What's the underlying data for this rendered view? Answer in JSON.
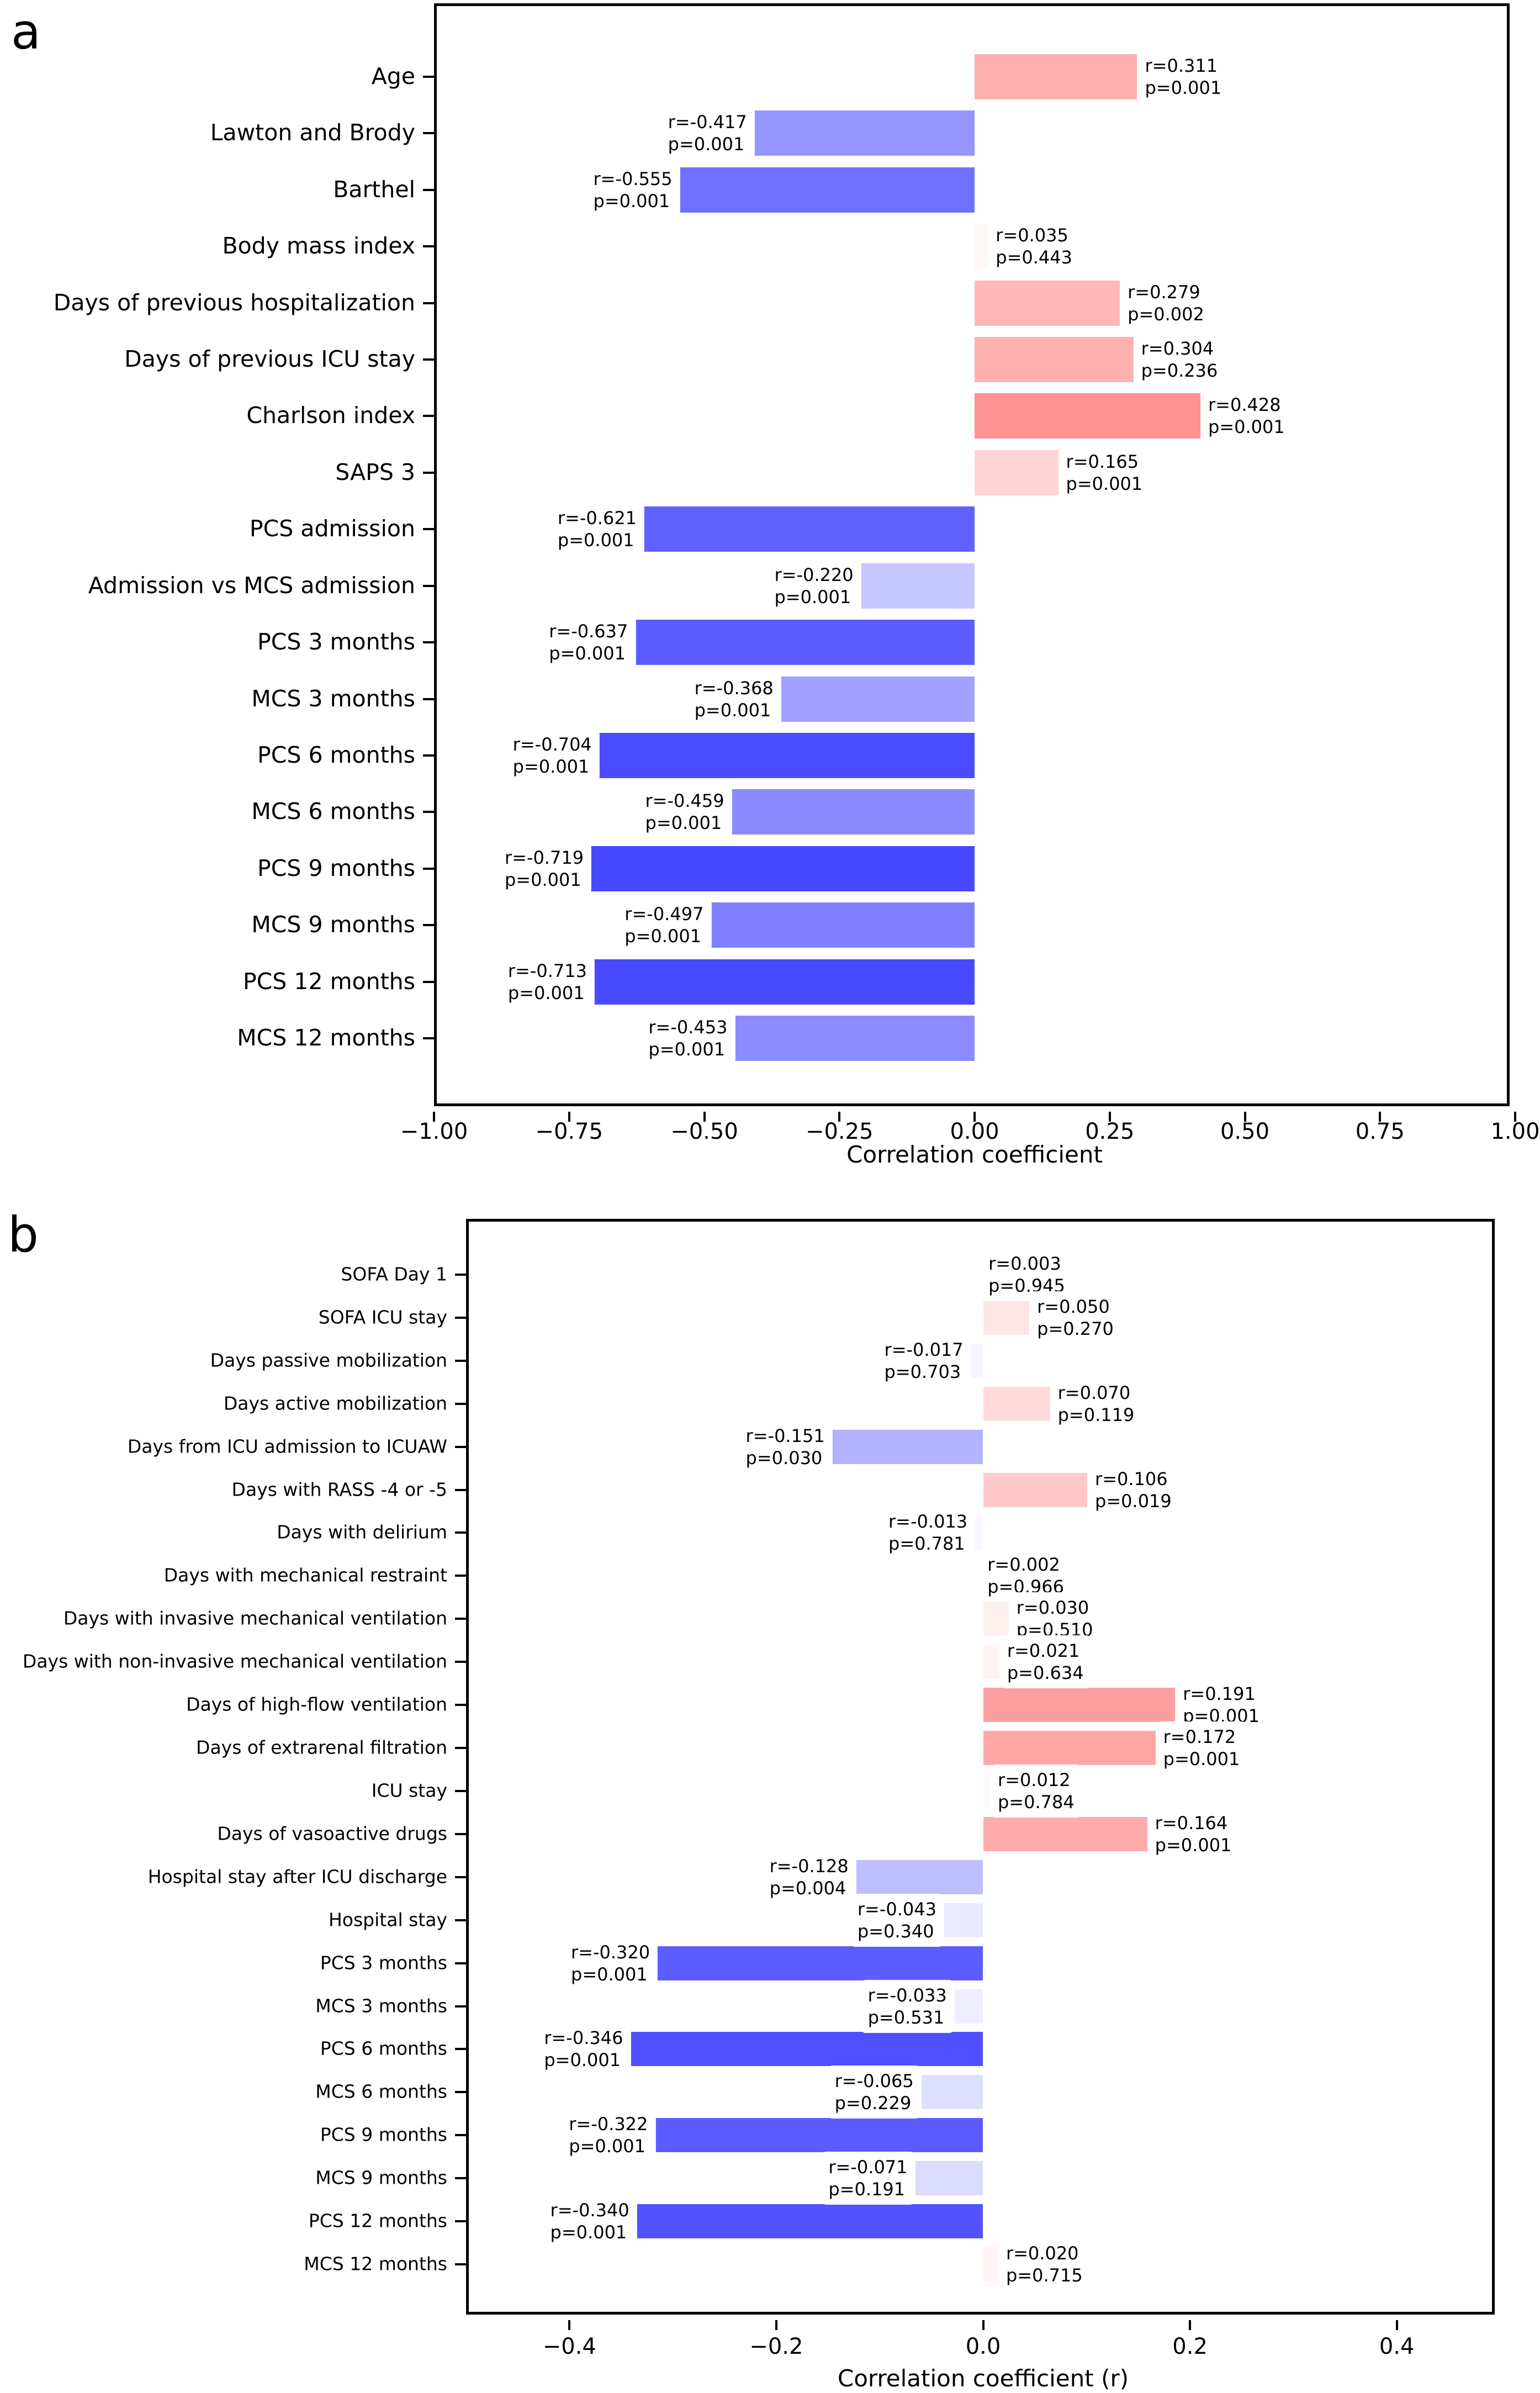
{
  "figure": {
    "background": "#ffffff",
    "positive_color_max": "#ff0000",
    "negative_color_max": "#0000ff",
    "neutral_color": "#ffffff"
  },
  "chart_data": [
    {
      "type": "bar",
      "orientation": "horizontal",
      "panel_label": "a",
      "xlabel": "Correlation coefficient",
      "xlim": [
        -1.0,
        1.0
      ],
      "color_norm": 1.0,
      "colormap": "bwr",
      "grid": false,
      "xticks": [
        {
          "value": -1.0,
          "label": "−1.00"
        },
        {
          "value": -0.75,
          "label": "−0.75"
        },
        {
          "value": -0.5,
          "label": "−0.50"
        },
        {
          "value": -0.25,
          "label": "−0.25"
        },
        {
          "value": 0.0,
          "label": "0.00"
        },
        {
          "value": 0.25,
          "label": "0.25"
        },
        {
          "value": 0.5,
          "label": "0.50"
        },
        {
          "value": 0.75,
          "label": "0.75"
        },
        {
          "value": 1.0,
          "label": "1.00"
        }
      ],
      "categories": [
        "Age",
        "Lawton and Brody",
        "Barthel",
        "Body mass index",
        "Days of previous hospitalization",
        "Days of previous ICU stay",
        "Charlson index",
        "SAPS 3",
        "PCS admission",
        "Admission vs MCS admission",
        "PCS 3 months",
        "MCS 3 months",
        "PCS 6 months",
        "MCS 6 months",
        "PCS 9 months",
        "MCS 9 months",
        "PCS 12 months",
        "MCS 12 months"
      ],
      "values": [
        0.311,
        -0.417,
        -0.555,
        0.035,
        0.279,
        0.304,
        0.428,
        0.165,
        -0.621,
        -0.22,
        -0.637,
        -0.368,
        -0.704,
        -0.459,
        -0.719,
        -0.497,
        -0.713,
        -0.453
      ],
      "p_values": [
        0.001,
        0.001,
        0.001,
        0.443,
        0.002,
        0.236,
        0.001,
        0.001,
        0.001,
        0.001,
        0.001,
        0.001,
        0.001,
        0.001,
        0.001,
        0.001,
        0.001,
        0.001
      ],
      "annotations": [
        {
          "r_text": "r=0.311",
          "p_text": "p=0.001"
        },
        {
          "r_text": "r=-0.417",
          "p_text": "p=0.001"
        },
        {
          "r_text": "r=-0.555",
          "p_text": "p=0.001"
        },
        {
          "r_text": "r=0.035",
          "p_text": "p=0.443"
        },
        {
          "r_text": "r=0.279",
          "p_text": "p=0.002"
        },
        {
          "r_text": "r=0.304",
          "p_text": "p=0.236"
        },
        {
          "r_text": "r=0.428",
          "p_text": "p=0.001"
        },
        {
          "r_text": "r=0.165",
          "p_text": "p=0.001"
        },
        {
          "r_text": "r=-0.621",
          "p_text": "p=0.001"
        },
        {
          "r_text": "r=-0.220",
          "p_text": "p=0.001"
        },
        {
          "r_text": "r=-0.637",
          "p_text": "p=0.001"
        },
        {
          "r_text": "r=-0.368",
          "p_text": "p=0.001"
        },
        {
          "r_text": "r=-0.704",
          "p_text": "p=0.001"
        },
        {
          "r_text": "r=-0.459",
          "p_text": "p=0.001"
        },
        {
          "r_text": "r=-0.719",
          "p_text": "p=0.001"
        },
        {
          "r_text": "r=-0.497",
          "p_text": "p=0.001"
        },
        {
          "r_text": "r=-0.713",
          "p_text": "p=0.001"
        },
        {
          "r_text": "r=-0.453",
          "p_text": "p=0.001"
        }
      ]
    },
    {
      "type": "bar",
      "orientation": "horizontal",
      "panel_label": "b",
      "xlabel": "Correlation coefficient (r)",
      "xlim": [
        -0.5,
        0.5
      ],
      "color_norm": 0.5,
      "colormap": "bwr",
      "grid": false,
      "xticks": [
        {
          "value": -0.4,
          "label": "−0.4"
        },
        {
          "value": -0.2,
          "label": "−0.2"
        },
        {
          "value": 0.0,
          "label": "0.0"
        },
        {
          "value": 0.2,
          "label": "0.2"
        },
        {
          "value": 0.4,
          "label": "0.4"
        }
      ],
      "categories": [
        "SOFA Day 1",
        "SOFA ICU stay",
        "Days passive mobilization",
        "Days active mobilization",
        "Days from ICU admission to ICUAW",
        "Days with RASS -4 or -5",
        "Days with delirium",
        "Days with mechanical restraint",
        "Days with invasive mechanical ventilation",
        "Days with non-invasive mechanical ventilation",
        "Days of high-flow ventilation",
        "Days of extrarenal filtration",
        "ICU stay",
        "Days of vasoactive drugs",
        "Hospital stay after ICU discharge",
        "Hospital stay",
        "PCS 3 months",
        "MCS 3 months",
        "PCS 6 months",
        "MCS 6 months",
        "PCS 9 months",
        "MCS 9 months",
        "PCS 12 months",
        "MCS 12 months"
      ],
      "values": [
        0.003,
        0.05,
        -0.017,
        0.07,
        -0.151,
        0.106,
        -0.013,
        0.002,
        0.03,
        0.021,
        0.191,
        0.172,
        0.012,
        0.164,
        -0.128,
        -0.043,
        -0.32,
        -0.033,
        -0.346,
        -0.065,
        -0.322,
        -0.071,
        -0.34,
        0.02
      ],
      "p_values": [
        0.945,
        0.27,
        0.703,
        0.119,
        0.03,
        0.019,
        0.781,
        0.966,
        0.51,
        0.634,
        0.001,
        0.001,
        0.784,
        0.001,
        0.004,
        0.34,
        0.001,
        0.531,
        0.001,
        0.229,
        0.001,
        0.191,
        0.001,
        0.715
      ],
      "annotations": [
        {
          "r_text": "r=0.003",
          "p_text": "p=0.945"
        },
        {
          "r_text": "r=0.050",
          "p_text": "p=0.270"
        },
        {
          "r_text": "r=-0.017",
          "p_text": "p=0.703"
        },
        {
          "r_text": "r=0.070",
          "p_text": "p=0.119"
        },
        {
          "r_text": "r=-0.151",
          "p_text": "p=0.030"
        },
        {
          "r_text": "r=0.106",
          "p_text": "p=0.019"
        },
        {
          "r_text": "r=-0.013",
          "p_text": "p=0.781"
        },
        {
          "r_text": "r=0.002",
          "p_text": "p=0.966"
        },
        {
          "r_text": "r=0.030",
          "p_text": "p=0.510"
        },
        {
          "r_text": "r=0.021",
          "p_text": "p=0.634"
        },
        {
          "r_text": "r=0.191",
          "p_text": "p=0.001"
        },
        {
          "r_text": "r=0.172",
          "p_text": "p=0.001"
        },
        {
          "r_text": "r=0.012",
          "p_text": "p=0.784"
        },
        {
          "r_text": "r=0.164",
          "p_text": "p=0.001"
        },
        {
          "r_text": "r=-0.128",
          "p_text": "p=0.004"
        },
        {
          "r_text": "r=-0.043",
          "p_text": "p=0.340"
        },
        {
          "r_text": "r=-0.320",
          "p_text": "p=0.001"
        },
        {
          "r_text": "r=-0.033",
          "p_text": "p=0.531"
        },
        {
          "r_text": "r=-0.346",
          "p_text": "p=0.001"
        },
        {
          "r_text": "r=-0.065",
          "p_text": "p=0.229"
        },
        {
          "r_text": "r=-0.322",
          "p_text": "p=0.001"
        },
        {
          "r_text": "r=-0.071",
          "p_text": "p=0.191"
        },
        {
          "r_text": "r=-0.340",
          "p_text": "p=0.001"
        },
        {
          "r_text": "r=0.020",
          "p_text": "p=0.715"
        }
      ]
    }
  ]
}
